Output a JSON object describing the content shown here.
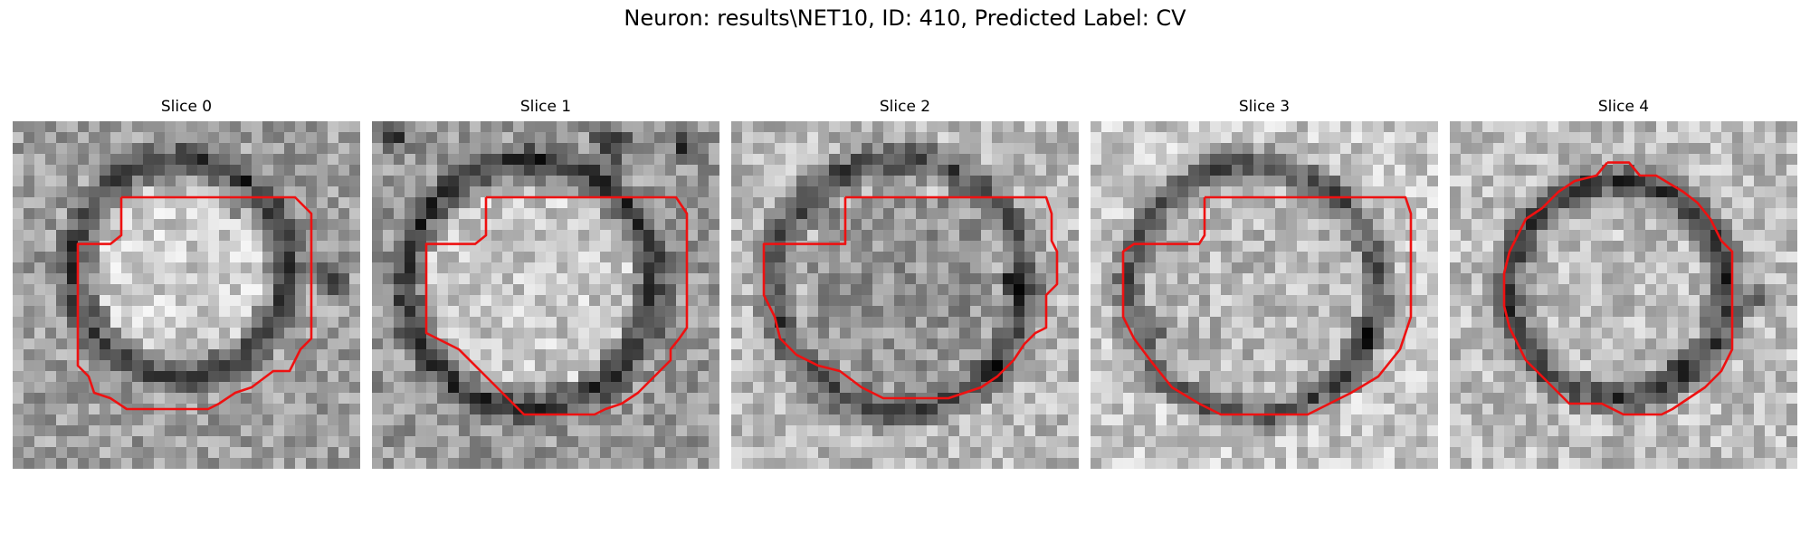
{
  "figure": {
    "title": "Neuron: results\\NET10, ID: 410, Predicted Label: CV"
  },
  "panels": [
    {
      "title": "Slice 0"
    },
    {
      "title": "Slice 1"
    },
    {
      "title": "Slice 2"
    },
    {
      "title": "Slice 3"
    },
    {
      "title": "Slice 4"
    }
  ],
  "colors": {
    "contour": "#ee1111",
    "background": "#ffffff"
  }
}
